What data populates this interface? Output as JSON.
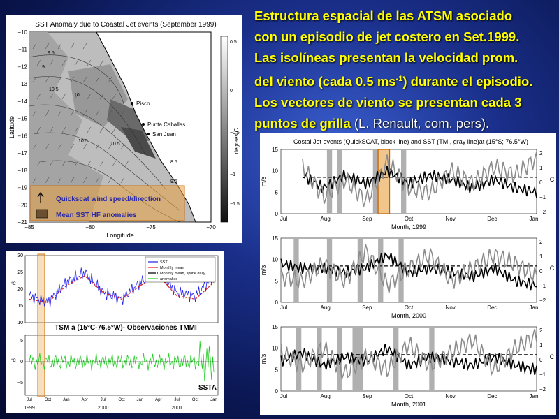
{
  "heading": {
    "line1": "Estructura espacial de las ATSM asociado",
    "line2": "con un episodio de jet costero en Set.1999.",
    "line3": "Las isolíneas presentan la velocidad prom.",
    "line4a": "del viento (cada 0.5 ms",
    "line4sup": "-1",
    "line4b": ") durante el episodio.",
    "line5": "Los vectores de viento se presentan cada 3",
    "line6a": "puntos de grilla",
    "line6b": " (L. Renault, com. pers)."
  },
  "colors": {
    "accent_text": "#ffff00",
    "highlight_box": "#e8a040",
    "sst_line": "#2222ee",
    "mean_line": "#dd2222",
    "anomaly_line": "#22cc22"
  },
  "map": {
    "title": "SST Anomaly due to Coastal Jet events (September 1999)",
    "xlabel": "Longitude",
    "ylabel": "Latitude",
    "x_ticks": [
      "−85",
      "−80",
      "−75",
      "−70"
    ],
    "y_ticks": [
      "−10",
      "−11",
      "−12",
      "−13",
      "−14",
      "−15",
      "−16",
      "−17",
      "−18",
      "−19",
      "−20",
      "−21"
    ],
    "colorbar_label": "degrees C",
    "colorbar_ticks": [
      "0.5",
      "0",
      "−0.5",
      "−1",
      "−1.5"
    ],
    "places": [
      "Pisco",
      "Punta Caballas",
      "San Juan"
    ],
    "contour_labels": [
      "9.5",
      "9",
      "10",
      "10.5",
      "10.5",
      "10.5",
      "8.5",
      "9.5"
    ],
    "legend": [
      "Quickscat wind speed/direction",
      "Mean SST HF anomalies"
    ]
  },
  "sst_chart": {
    "legend": [
      "SST",
      "Monthly mean",
      "Monthly mean, spline daily",
      "anomalies"
    ],
    "top_y_ticks": [
      "30",
      "25",
      "20",
      "15",
      "10"
    ],
    "bottom_y_ticks": [
      "5",
      "0",
      "−5"
    ],
    "y_unit": "°C",
    "x_ticks": [
      "Jul",
      "Oct",
      "Jan",
      "Apr",
      "Jul",
      "Oct",
      "Jan",
      "Apr",
      "Jul",
      "Oct",
      "Jan"
    ],
    "year_labels": [
      "1999",
      "2000",
      "2001"
    ],
    "caption": "TSM a (15°C-76.5°W)- Observaciones TMMI",
    "ssta_label": "SSTA"
  },
  "jet_chart": {
    "title": "Costal Jet events (QuickSCAT, black line) and SST (TMI, gray line)at (15°S; 76.5°W)",
    "left_ticks": [
      "15",
      "10",
      "5",
      "0"
    ],
    "right_ticks": [
      "2",
      "1",
      "0",
      "−1",
      "−2"
    ],
    "left_unit": "m/s",
    "right_unit": "C",
    "months": [
      "Jul",
      "Aug",
      "Sep",
      "Oct",
      "Nov",
      "Dec",
      "Jan"
    ],
    "panel_xlabels": [
      "Month, 1999",
      "Month, 2000",
      "Month, 2001"
    ]
  },
  "chart_data": [
    {
      "type": "line",
      "title": "Costal Jet events (QuickSCAT, black line) and SST (TMI, gray line)at (15°S; 76.5°W)",
      "xlabel": "Month, 1999",
      "ylabel": "m/s",
      "y2label": "C",
      "x": [
        "Jul",
        "Jul",
        "Aug",
        "Aug",
        "Sep",
        "Sep",
        "Oct",
        "Oct",
        "Nov",
        "Nov",
        "Dec",
        "Dec",
        "Jan"
      ],
      "ylim": [
        0,
        15
      ],
      "y2lim": [
        -2,
        2
      ],
      "series": [
        {
          "name": "QuickSCAT",
          "values": [
            null,
            9,
            6,
            9,
            7,
            10,
            7,
            9,
            8,
            6,
            8,
            6,
            5
          ]
        },
        {
          "name": "TMI",
          "values": [
            null,
            11,
            4,
            8,
            3,
            12,
            6,
            5,
            10,
            7,
            11,
            9,
            13
          ]
        }
      ]
    },
    {
      "type": "line",
      "xlabel": "Month, 2000",
      "ylabel": "m/s",
      "y2label": "C",
      "x": [
        "Jul",
        "Jul",
        "Aug",
        "Aug",
        "Sep",
        "Sep",
        "Oct",
        "Oct",
        "Nov",
        "Nov",
        "Dec",
        "Dec",
        "Jan"
      ],
      "ylim": [
        0,
        15
      ],
      "y2lim": [
        -2,
        2
      ],
      "series": [
        {
          "name": "QuickSCAT",
          "values": [
            9,
            8,
            8,
            7,
            8,
            11,
            7,
            8,
            7,
            6,
            8,
            5,
            4
          ]
        },
        {
          "name": "TMI",
          "values": [
            6,
            5,
            9,
            5,
            12,
            4,
            8,
            11,
            5,
            8,
            11,
            9,
            6
          ]
        }
      ]
    },
    {
      "type": "line",
      "xlabel": "Month, 2001",
      "ylabel": "m/s",
      "y2label": "C",
      "x": [
        "Jul",
        "Jul",
        "Aug",
        "Aug",
        "Sep",
        "Sep",
        "Oct",
        "Oct",
        "Nov",
        "Nov",
        "Dec",
        "Dec",
        "Jan"
      ],
      "ylim": [
        0,
        15
      ],
      "y2lim": [
        -2,
        2
      ],
      "series": [
        {
          "name": "QuickSCAT",
          "values": [
            7,
            9,
            6,
            8,
            7,
            10,
            6,
            8,
            7,
            6,
            8,
            6,
            5
          ]
        },
        {
          "name": "TMI",
          "values": [
            9,
            6,
            10,
            4,
            8,
            5,
            11,
            6,
            9,
            12,
            5,
            10,
            13
          ]
        }
      ]
    },
    {
      "type": "line",
      "title": "TSM a (15°C-76.5°W)- Observaciones TMMI",
      "ylabel": "°C",
      "x": [
        "Jul 1999",
        "Oct 1999",
        "Jan 2000",
        "Apr 2000",
        "Jul 2000",
        "Oct 2000",
        "Jan 2001",
        "Apr 2001",
        "Jul 2001",
        "Oct 2001",
        "Jan 2002"
      ],
      "ylim": [
        10,
        30
      ],
      "series": [
        {
          "name": "SST",
          "values": [
            18,
            16,
            22,
            25,
            19,
            17,
            22,
            25,
            19,
            18,
            24
          ]
        },
        {
          "name": "Monthly mean",
          "values": [
            17,
            16,
            21,
            24,
            19,
            17,
            21,
            24,
            18,
            17,
            22
          ]
        }
      ]
    }
  ]
}
